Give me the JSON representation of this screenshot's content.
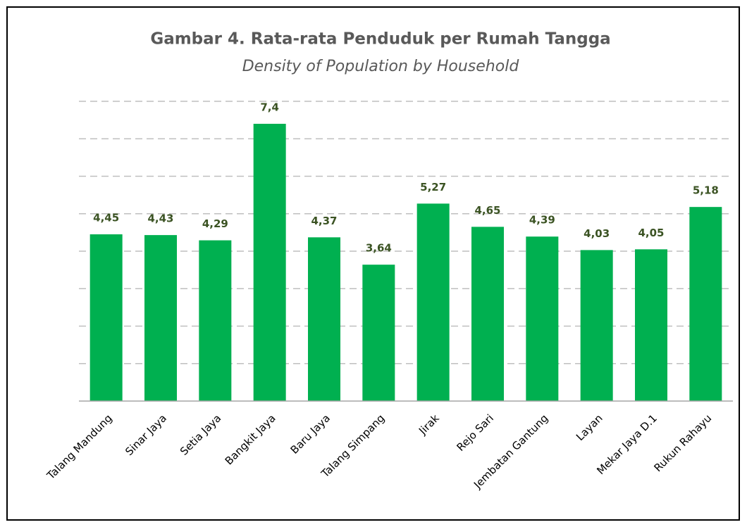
{
  "chart_data": {
    "type": "bar",
    "title": "Gambar 4. Rata-rata Penduduk per Rumah Tangga",
    "subtitle": "Density of Population by Household",
    "categories": [
      "Talang Mandung",
      "Sinar Jaya",
      "Setia Jaya",
      "Bangkit Jaya",
      "Baru Jaya",
      "Talang Simpang",
      "Jirak",
      "Rejo Sari",
      "Jembatan Gantung",
      "Layan",
      "Mekar Jaya D.1",
      "Rukun Rahayu"
    ],
    "values": [
      4.45,
      4.43,
      4.29,
      7.4,
      4.37,
      3.64,
      5.27,
      4.65,
      4.39,
      4.03,
      4.05,
      5.18
    ],
    "value_labels": [
      "4,45",
      "4,43",
      "4,29",
      "7,4",
      "4,37",
      "3,64",
      "5,27",
      "4,65",
      "4,39",
      "4,03",
      "4,05",
      "5,18"
    ],
    "color": "#00b050",
    "ylim": [
      0,
      8
    ],
    "yticks": [
      0,
      1,
      2,
      3,
      4,
      5,
      6,
      7,
      8
    ],
    "grid": true
  }
}
